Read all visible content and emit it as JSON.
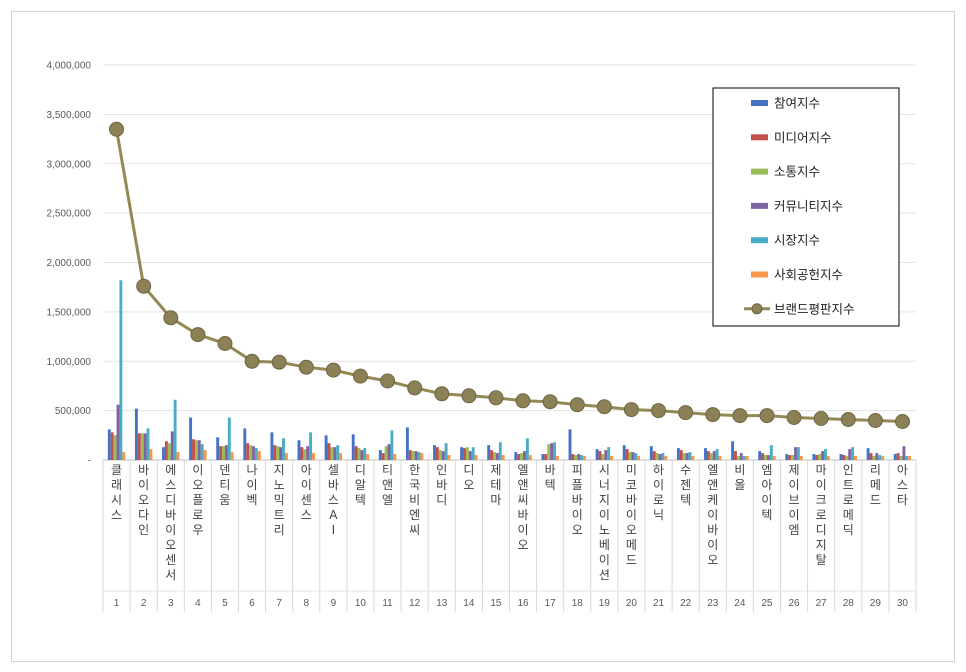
{
  "chart_data": {
    "type": "bar",
    "title": "",
    "xlabel": "",
    "ylabel": "",
    "ylim": [
      0,
      4000000
    ],
    "y_ticks": [
      "-",
      "500,000",
      "1,000,000",
      "1,500,000",
      "2,000,000",
      "2,500,000",
      "3,000,000",
      "3,500,000",
      "4,000,000"
    ],
    "grid": true,
    "legend_position": "top-right",
    "numbers": [
      "1",
      "2",
      "3",
      "4",
      "5",
      "6",
      "7",
      "8",
      "9",
      "10",
      "11",
      "12",
      "13",
      "14",
      "15",
      "16",
      "17",
      "18",
      "19",
      "20",
      "21",
      "22",
      "23",
      "24",
      "25",
      "26",
      "27",
      "28",
      "29",
      "30"
    ],
    "categories": [
      "클래시스",
      "바이오다인",
      "에스디바이오센서",
      "이오플로우",
      "덴티움",
      "나이벡",
      "지노믹트리",
      "아이센스",
      "셀바스AI",
      "디알텍",
      "티앤엘",
      "한국비엔씨",
      "인바디",
      "디오",
      "제테마",
      "엘앤씨바이오",
      "바텍",
      "피플바이오",
      "시너지이노베이션",
      "미코바이오메드",
      "하이로닉",
      "수젠텍",
      "엘앤케이바이오",
      "비올",
      "엠아이텍",
      "제이브이엠",
      "마이크로디지탈",
      "인트로메딕",
      "리메드",
      "아스타"
    ],
    "series": [
      {
        "name": "참여지수",
        "color": "#4472c4",
        "values": [
          310000,
          520000,
          130000,
          430000,
          230000,
          320000,
          280000,
          200000,
          250000,
          260000,
          100000,
          330000,
          150000,
          130000,
          150000,
          80000,
          60000,
          310000,
          110000,
          150000,
          140000,
          120000,
          120000,
          190000,
          90000,
          60000,
          60000,
          60000,
          120000,
          60000
        ]
      },
      {
        "name": "미디어지수",
        "color": "#c0504d",
        "values": [
          280000,
          270000,
          190000,
          210000,
          140000,
          170000,
          150000,
          130000,
          170000,
          140000,
          70000,
          100000,
          130000,
          120000,
          100000,
          60000,
          60000,
          60000,
          90000,
          110000,
          90000,
          100000,
          90000,
          90000,
          70000,
          50000,
          50000,
          50000,
          70000,
          70000
        ]
      },
      {
        "name": "소통지수",
        "color": "#9bbb59",
        "values": [
          250000,
          270000,
          170000,
          200000,
          140000,
          150000,
          140000,
          110000,
          130000,
          120000,
          140000,
          90000,
          100000,
          130000,
          80000,
          70000,
          160000,
          50000,
          60000,
          80000,
          70000,
          70000,
          70000,
          40000,
          50000,
          50000,
          60000,
          40000,
          40000,
          40000
        ]
      },
      {
        "name": "커뮤니티지수",
        "color": "#8064a2",
        "values": [
          560000,
          270000,
          290000,
          200000,
          150000,
          140000,
          130000,
          140000,
          130000,
          100000,
          160000,
          90000,
          90000,
          90000,
          70000,
          90000,
          170000,
          60000,
          100000,
          80000,
          60000,
          70000,
          90000,
          70000,
          50000,
          130000,
          90000,
          110000,
          70000,
          140000
        ]
      },
      {
        "name": "시장지수",
        "color": "#4bacc6",
        "values": [
          1820000,
          320000,
          610000,
          160000,
          430000,
          120000,
          220000,
          280000,
          150000,
          120000,
          300000,
          80000,
          170000,
          130000,
          180000,
          220000,
          180000,
          50000,
          130000,
          70000,
          70000,
          80000,
          110000,
          40000,
          150000,
          130000,
          110000,
          130000,
          50000,
          40000
        ]
      },
      {
        "name": "사회공헌지수",
        "color": "#f79646",
        "values": [
          80000,
          110000,
          80000,
          100000,
          80000,
          90000,
          70000,
          70000,
          70000,
          60000,
          60000,
          70000,
          50000,
          50000,
          50000,
          50000,
          40000,
          40000,
          40000,
          40000,
          40000,
          40000,
          40000,
          40000,
          40000,
          40000,
          40000,
          40000,
          40000,
          40000
        ]
      },
      {
        "name": "브랜드평판지수",
        "color": "#938953",
        "type": "line",
        "values": [
          3350000,
          1760000,
          1440000,
          1270000,
          1180000,
          1000000,
          990000,
          940000,
          910000,
          850000,
          800000,
          730000,
          670000,
          650000,
          630000,
          600000,
          590000,
          560000,
          540000,
          510000,
          500000,
          480000,
          460000,
          450000,
          450000,
          430000,
          420000,
          410000,
          400000,
          390000
        ]
      }
    ]
  }
}
